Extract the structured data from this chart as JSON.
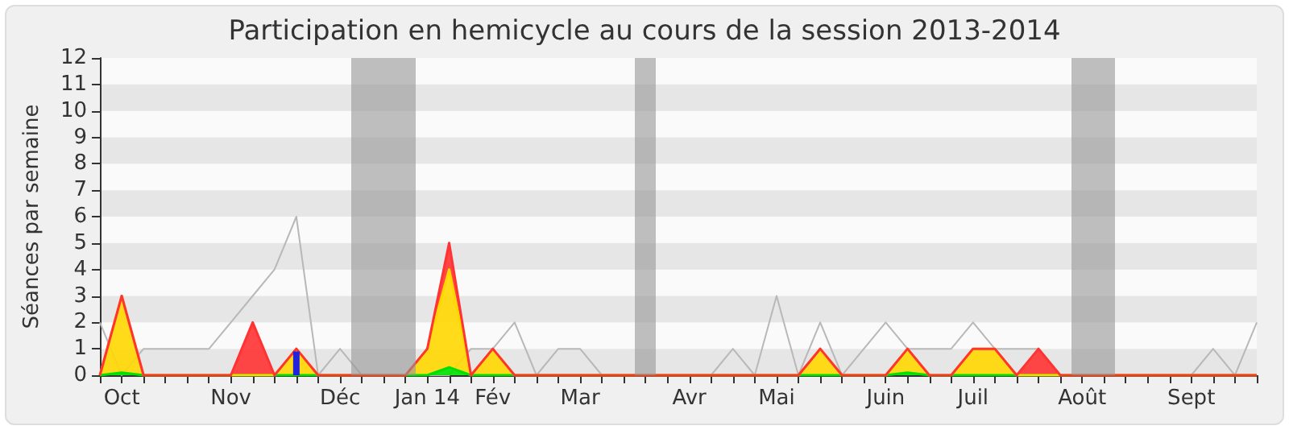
{
  "chart_data": {
    "type": "area",
    "title": "Participation en hemicycle au cours de la session 2013-2014",
    "ylabel": "Séances par semaine",
    "categories": [
      null,
      "Oct",
      null,
      null,
      null,
      null,
      "Nov",
      null,
      null,
      null,
      null,
      "Déc",
      null,
      null,
      null,
      "Jan 14",
      null,
      null,
      "Fév",
      null,
      null,
      null,
      "Mar",
      null,
      null,
      null,
      null,
      "Avr",
      null,
      null,
      null,
      "Mai",
      null,
      null,
      null,
      null,
      "Juin",
      null,
      null,
      null,
      "Juil",
      null,
      null,
      null,
      null,
      "Août",
      null,
      null,
      null,
      null,
      "Sept",
      null,
      null,
      null
    ],
    "ylim": [
      0,
      12
    ],
    "yticks": [
      0,
      1,
      2,
      3,
      4,
      5,
      6,
      7,
      8,
      9,
      10,
      11,
      12
    ],
    "stacked": true,
    "marker": "none",
    "series": [
      {
        "type": "line",
        "color": "#b8b8b8",
        "values": [
          2,
          0,
          1,
          1,
          1,
          1,
          2,
          3,
          4,
          6,
          0,
          1,
          0,
          0,
          0,
          0,
          0,
          1,
          1,
          2,
          0,
          1,
          1,
          0,
          0,
          0,
          0,
          0,
          0,
          1,
          0,
          3,
          0,
          2,
          0,
          1,
          2,
          1,
          1,
          1,
          2,
          1,
          1,
          1,
          0,
          0,
          0,
          0,
          0,
          0,
          0,
          1,
          0,
          2
        ]
      },
      {
        "color": "#00e000",
        "values": [
          0,
          0.1,
          0,
          0,
          0,
          0,
          0,
          0,
          0,
          0,
          0,
          0,
          0,
          0,
          0,
          0,
          0.3,
          0,
          0,
          0,
          0,
          0,
          0,
          0,
          0,
          0,
          0,
          0,
          0,
          0,
          0,
          0,
          0,
          0,
          0,
          0,
          0,
          0.1,
          0,
          0,
          0,
          0,
          0,
          0,
          0,
          0,
          0,
          0,
          0,
          0,
          0,
          0,
          0,
          0
        ]
      },
      {
        "color": "#ffd700",
        "values": [
          0,
          2.9,
          0,
          0,
          0,
          0,
          0,
          0,
          0,
          1,
          0,
          0,
          0,
          0,
          0,
          1,
          3.7,
          0,
          1,
          0,
          0,
          0,
          0,
          0,
          0,
          0,
          0,
          0,
          0,
          0,
          0,
          0,
          0,
          1,
          0,
          0,
          0,
          0.9,
          0,
          0,
          1,
          1,
          0,
          0,
          0,
          0,
          0,
          0,
          0,
          0,
          0,
          0,
          0,
          0
        ]
      },
      {
        "color": "#ff3333",
        "values": [
          0,
          0,
          0,
          0,
          0,
          0,
          0,
          2,
          0,
          0,
          0,
          0,
          0,
          0,
          0,
          0,
          1,
          0,
          0,
          0,
          0,
          0,
          0,
          0,
          0,
          0,
          0,
          0,
          0,
          0,
          0,
          0,
          0,
          0,
          0,
          0,
          0,
          0,
          0,
          0,
          0,
          0,
          0,
          1,
          0,
          0,
          0,
          0,
          0,
          0,
          0,
          0,
          0,
          0
        ]
      },
      {
        "type": "bar",
        "color": "#2222dd",
        "values": [
          null,
          null,
          null,
          null,
          null,
          null,
          null,
          null,
          null,
          0.9,
          null,
          null,
          null,
          null,
          null,
          null,
          null,
          null,
          null,
          null,
          null,
          null,
          null,
          null,
          null,
          null,
          null,
          null,
          null,
          null,
          null,
          null,
          null,
          null,
          null,
          null,
          null,
          null,
          null,
          null,
          null,
          null,
          null,
          null,
          null,
          null,
          null,
          null,
          null,
          null,
          null,
          null,
          null,
          null
        ]
      }
    ]
  }
}
